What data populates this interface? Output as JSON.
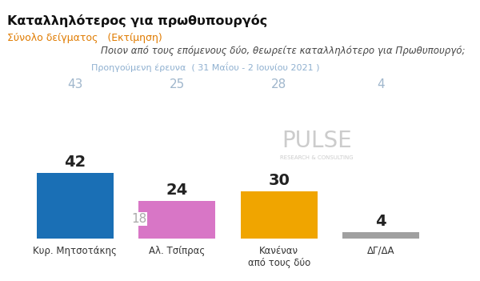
{
  "chart_data": {
    "type": "bar",
    "title": "Καταλληλότερος για πρωθυπουργός",
    "subtitle": "Σύνολο δείγματος   (Εκτίμηση)",
    "question": "Ποιον από τους επόμενους δύο, θεωρείτε καταλληλότερο για Πρωθυπουργό;",
    "categories": [
      "Κυρ. Μητσοτάκης",
      "Αλ. Τσίπρας",
      "Κανέναν\nαπό τους δύο",
      "ΔΓ/ΔΑ"
    ],
    "values": [
      42,
      24,
      30,
      4
    ],
    "colors": [
      "#1a6fb5",
      "#d876c6",
      "#f0a500",
      "#a0a0a0"
    ],
    "data_labels": true,
    "tick_labels": "x",
    "previous": {
      "label": "Προηγούμενη έρευνα  ( 31 Μαΐου - 2 Ιουνίου 2021 )",
      "values": [
        43,
        25,
        28,
        4
      ]
    },
    "annotations": [
      "18"
    ],
    "watermark": [
      "PULSE",
      "RESEARCH & CONSULTING"
    ]
  }
}
